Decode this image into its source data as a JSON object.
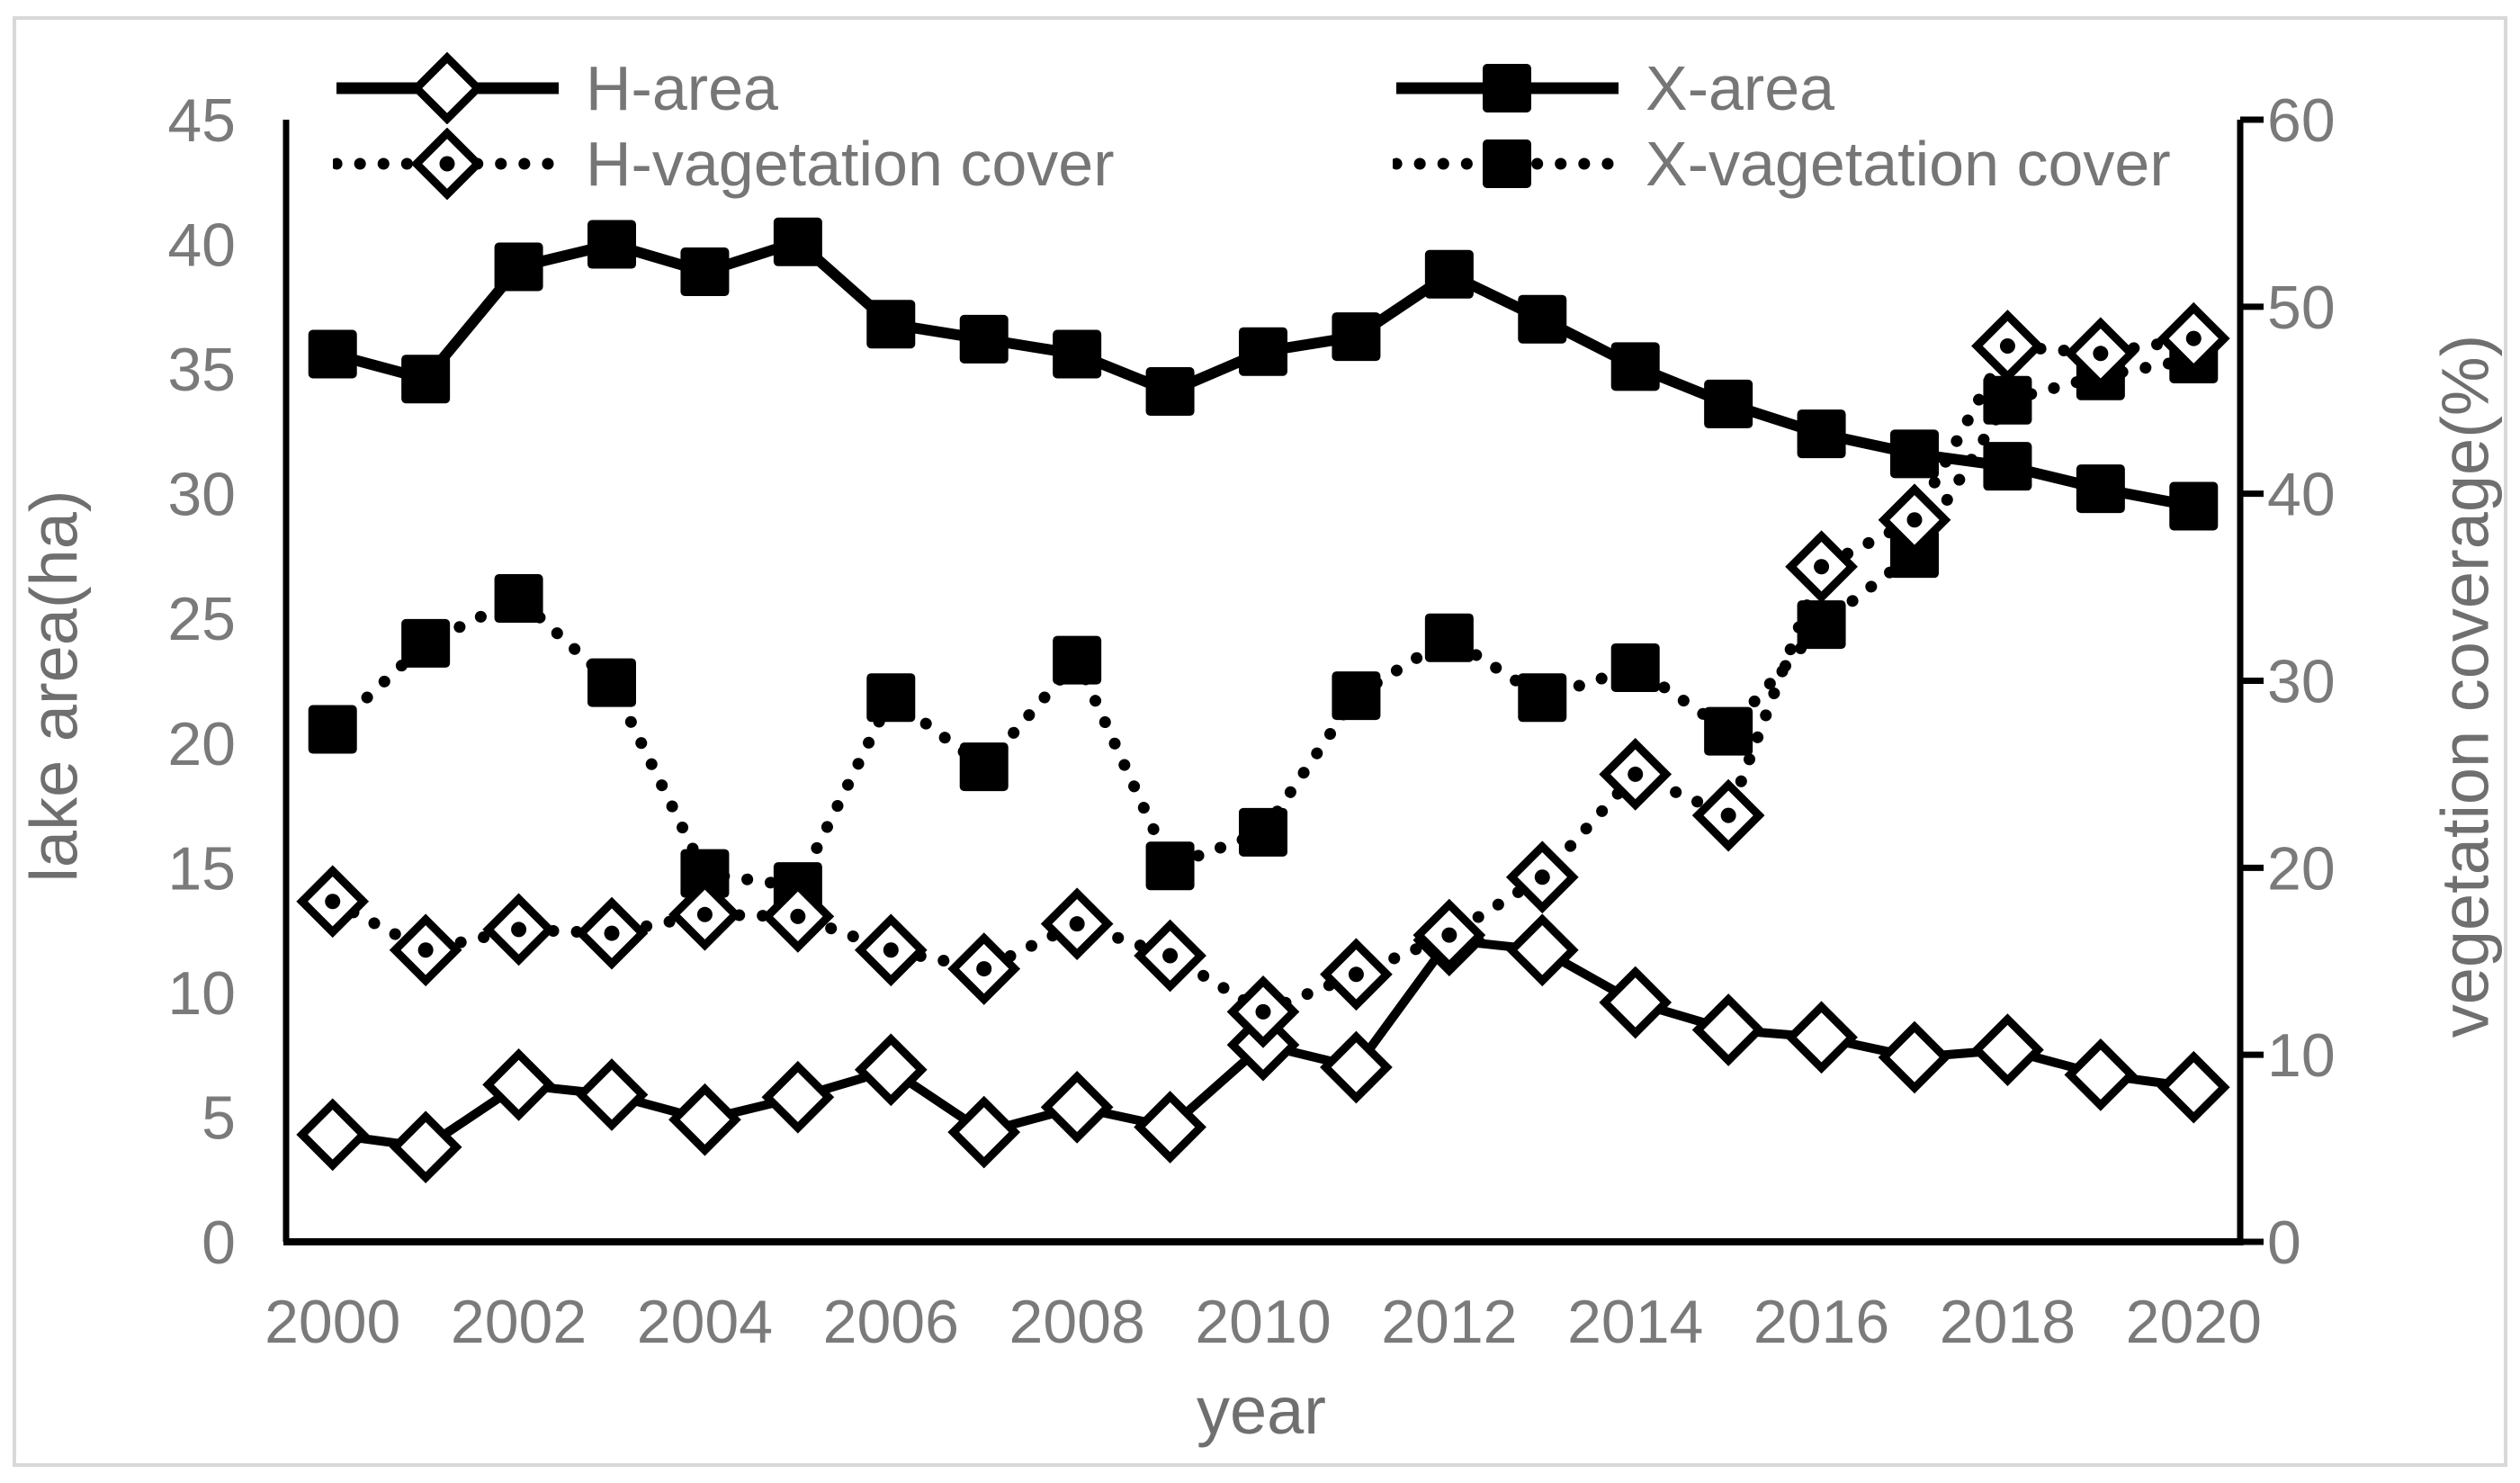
{
  "figure": {
    "background": "#ffffff",
    "border_color": "#d9d9d9",
    "series_color": "#000000",
    "text_color": "#7a7a7a"
  },
  "axes": {
    "left": {
      "title": "lake area(ha)",
      "tick_values": [
        0,
        5,
        10,
        15,
        20,
        25,
        30,
        35,
        40,
        45
      ],
      "range": [
        0,
        45
      ]
    },
    "right": {
      "title": "vegetation coverage(%)",
      "tick_values": [
        0,
        10,
        20,
        30,
        40,
        50,
        60
      ],
      "range": [
        0,
        60
      ]
    },
    "x": {
      "title": "year",
      "tick_labels": [
        "2000",
        "2002",
        "2004",
        "2006",
        "2008",
        "2010",
        "2012",
        "2014",
        "2016",
        "2018",
        "2020"
      ]
    }
  },
  "legend": [
    {
      "label": "H-area",
      "marker": "open-diamond",
      "line": "solid"
    },
    {
      "label": "X-area",
      "marker": "filled-square",
      "line": "solid"
    },
    {
      "label": "H-vagetation cover",
      "marker": "open-diamond-dot",
      "line": "dotted"
    },
    {
      "label": "X-vagetation cover",
      "marker": "filled-square",
      "line": "dotted"
    }
  ],
  "chart_data": {
    "type": "line",
    "title": "",
    "xlabel": "year",
    "ylabel_left": "lake area(ha)",
    "ylabel_right": "vegetation coverage(%)",
    "x": [
      2000,
      2001,
      2002,
      2003,
      2004,
      2005,
      2006,
      2007,
      2008,
      2009,
      2010,
      2011,
      2012,
      2013,
      2014,
      2015,
      2016,
      2017,
      2018,
      2019,
      2020
    ],
    "ylim_left": [
      0,
      45
    ],
    "ylim_right": [
      0,
      60
    ],
    "grid": false,
    "legend_position": "top",
    "series": [
      {
        "name": "H-area",
        "axis": "left",
        "line": "solid",
        "marker": "open-diamond",
        "values": [
          4.3,
          3.8,
          6.3,
          5.9,
          4.9,
          5.8,
          6.9,
          4.4,
          5.4,
          4.6,
          7.9,
          7.0,
          12.1,
          11.7,
          9.6,
          8.5,
          8.2,
          7.4,
          7.7,
          6.7,
          6.2
        ]
      },
      {
        "name": "X-area",
        "axis": "left",
        "line": "solid",
        "marker": "filled-square",
        "values": [
          35.6,
          34.6,
          39.1,
          40.0,
          38.9,
          40.1,
          36.8,
          36.2,
          35.6,
          34.1,
          35.7,
          36.3,
          38.8,
          37.0,
          35.1,
          33.6,
          32.4,
          31.6,
          31.1,
          30.2,
          29.5
        ]
      },
      {
        "name": "H-vagetation cover",
        "axis": "right",
        "line": "dotted",
        "marker": "open-diamond-dot",
        "values": [
          18.2,
          15.6,
          16.7,
          16.5,
          17.5,
          17.4,
          15.6,
          14.6,
          17.0,
          15.3,
          12.3,
          14.3,
          16.4,
          19.5,
          25.0,
          22.8,
          36.1,
          38.6,
          47.9,
          47.5,
          48.3
        ]
      },
      {
        "name": "X-vagetation cover",
        "axis": "right",
        "line": "dotted",
        "marker": "filled-square",
        "values": [
          27.4,
          32.0,
          34.4,
          29.9,
          19.7,
          19.0,
          29.1,
          25.4,
          31.1,
          20.1,
          21.9,
          29.2,
          32.3,
          29.1,
          30.7,
          27.3,
          33.0,
          36.8,
          45.0,
          46.3,
          47.2
        ]
      }
    ]
  }
}
